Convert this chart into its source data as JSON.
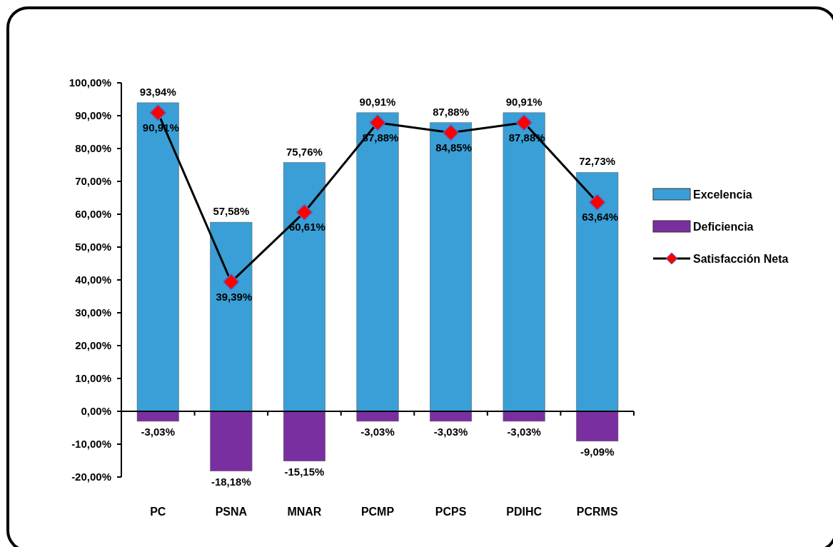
{
  "chart_data": {
    "type": "bar",
    "stacked": true,
    "categories": [
      "PC",
      "PSNA",
      "MNAR",
      "PCMP",
      "PCPS",
      "PDIHC",
      "PCRMS"
    ],
    "series": [
      {
        "name": "Excelencia",
        "color": "#3a9fd6",
        "values": [
          93.94,
          57.58,
          75.76,
          90.91,
          87.88,
          90.91,
          72.73
        ],
        "value_labels": [
          "93,94%",
          "57,58%",
          "75,76%",
          "90,91%",
          "87,88%",
          "90,91%",
          "72,73%"
        ]
      },
      {
        "name": "Deficiencia",
        "color": "#7a2fa0",
        "values": [
          -3.03,
          -18.18,
          -15.15,
          -3.03,
          -3.03,
          -3.03,
          -9.09
        ],
        "value_labels": [
          "-3,03%",
          "-18,18%",
          "-15,15%",
          "-3,03%",
          "-3,03%",
          "-3,03%",
          "-9,09%"
        ]
      },
      {
        "name": "Satisfacción  Neta",
        "type": "line",
        "color": "#000000",
        "values": [
          90.91,
          39.39,
          60.61,
          87.88,
          84.85,
          87.88,
          63.64
        ],
        "value_labels": [
          "90,91%",
          "39,39%",
          "60,61%",
          "87,88%",
          "84,85%",
          "87,88%",
          "63,64%"
        ]
      }
    ],
    "ylim": [
      -20,
      100
    ],
    "yticks": [
      {
        "value": -20,
        "label": "-20,00%"
      },
      {
        "value": -10,
        "label": "-10,00%"
      },
      {
        "value": 0,
        "label": "0,00%"
      },
      {
        "value": 10,
        "label": "10,00%"
      },
      {
        "value": 20,
        "label": "20,00%"
      },
      {
        "value": 30,
        "label": "30,00%"
      },
      {
        "value": 40,
        "label": "40,00%"
      },
      {
        "value": 50,
        "label": "50,00%"
      },
      {
        "value": 60,
        "label": "60,00%"
      },
      {
        "value": 70,
        "label": "70,00%"
      },
      {
        "value": 80,
        "label": "80,00%"
      },
      {
        "value": 90,
        "label": "90,00%"
      },
      {
        "value": 100,
        "label": "100,00%"
      }
    ],
    "legend": "right",
    "marker": "diamond",
    "line_style": "solid"
  }
}
